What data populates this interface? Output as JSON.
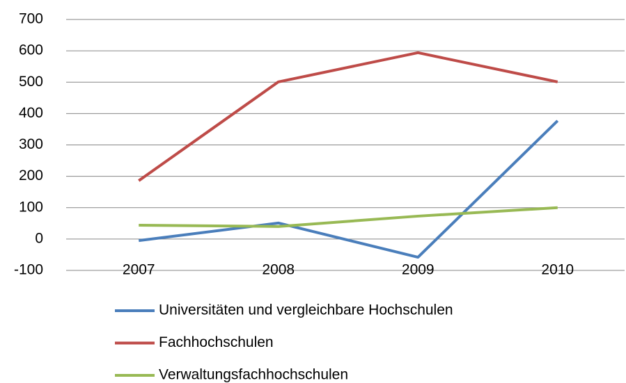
{
  "chart_data": {
    "type": "line",
    "categories": [
      "2007",
      "2008",
      "2009",
      "2010"
    ],
    "series": [
      {
        "name": "Universitäten und vergleichbare Hochschulen",
        "color": "#4a7ebb",
        "values": [
          -5,
          51,
          -58,
          377
        ]
      },
      {
        "name": "Fachhochschulen",
        "color": "#be4b48",
        "values": [
          186,
          501,
          594,
          501
        ]
      },
      {
        "name": "Verwaltungsfachhochschulen",
        "color": "#98b954",
        "values": [
          44,
          40,
          73,
          100
        ]
      }
    ],
    "ylim": [
      -100,
      700
    ],
    "yticks": [
      -100,
      0,
      100,
      200,
      300,
      400,
      500,
      600,
      700
    ],
    "grid": true,
    "negative_tick_color": "#ff0000",
    "legend": "bottom"
  }
}
